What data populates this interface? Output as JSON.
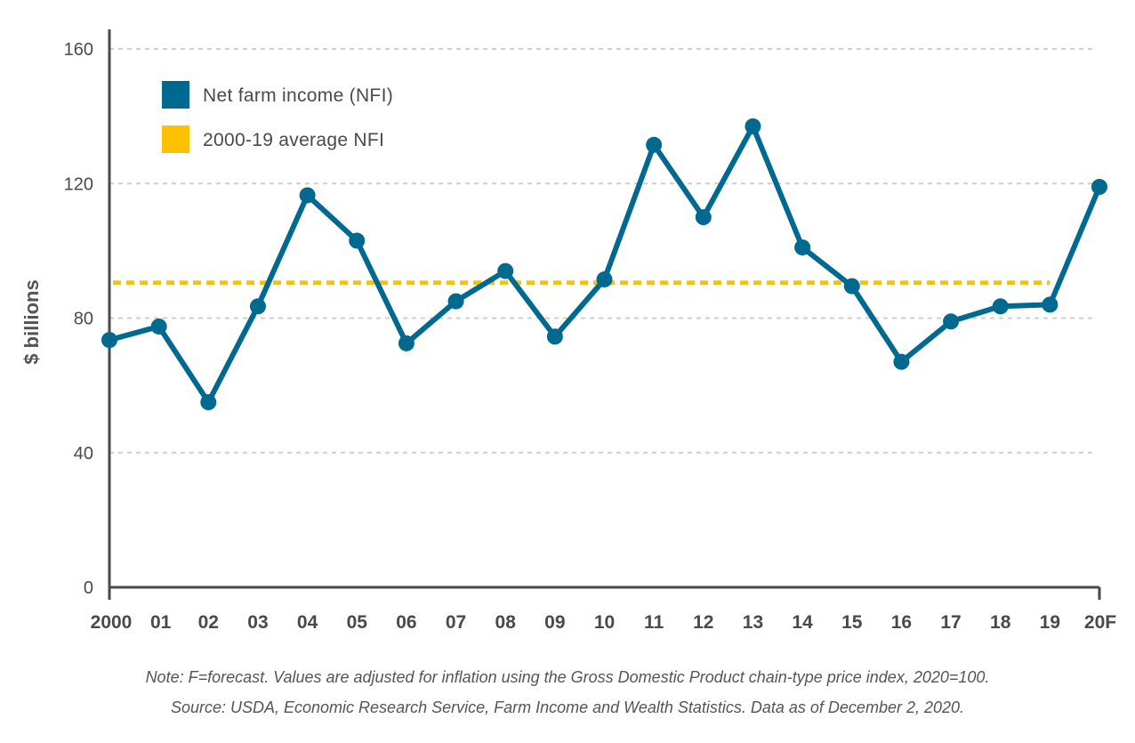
{
  "chart_data": {
    "type": "line",
    "ylabel": "$ billions",
    "ylim": [
      0,
      160
    ],
    "yticks": [
      "0",
      "40",
      "80",
      "120",
      "160"
    ],
    "grid": true,
    "legend_position": "top-left",
    "categories": [
      "2000",
      "01",
      "02",
      "03",
      "04",
      "05",
      "06",
      "07",
      "08",
      "09",
      "10",
      "11",
      "12",
      "13",
      "14",
      "15",
      "16",
      "17",
      "18",
      "19",
      "20F"
    ],
    "series": [
      {
        "name": "Net farm income (NFI)",
        "color": "#00698f",
        "values": [
          73.5,
          77.5,
          55,
          83.5,
          116.5,
          103,
          72.5,
          85,
          94,
          74.5,
          91.5,
          131.5,
          110,
          137,
          101,
          89.5,
          67,
          79,
          83.5,
          84,
          119
        ]
      },
      {
        "name": "2000-19 average NFI",
        "color": "#fcc200",
        "style": "dashed",
        "value": 90.5,
        "x_range": [
          "2000",
          "19"
        ]
      }
    ],
    "note": "Note: F=forecast. Values are adjusted for inflation using the Gross Domestic Product chain-type price index, 2020=100.",
    "source": "Source: USDA, Economic Research Service, Farm Income and Wealth Statistics. Data as of December 2, 2020."
  }
}
